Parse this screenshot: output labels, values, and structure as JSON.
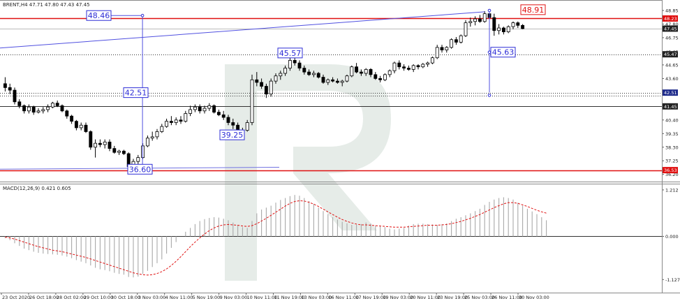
{
  "chart_data": {
    "type": "candlestick",
    "title": "BRENT,H4  47.71 47.80 47.43 47.45",
    "price_axis": {
      "range": [
        35.7,
        49.55
      ],
      "ticks": [
        "48.85",
        "47.80",
        "46.75",
        "45.65",
        "44.65",
        "43.60",
        "42.55",
        "41.45",
        "40.40",
        "39.35",
        "38.30",
        "37.25",
        "36.20"
      ],
      "tick_values": [
        48.85,
        47.8,
        46.75,
        45.65,
        44.65,
        43.6,
        42.55,
        41.45,
        40.4,
        39.35,
        38.3,
        37.25,
        36.2
      ]
    },
    "price_tags": [
      {
        "text": "48.23",
        "value": 48.23,
        "color": "#e01010"
      },
      {
        "text": "47.45",
        "value": 47.45,
        "color": "#222222"
      },
      {
        "text": "45.47",
        "value": 45.47,
        "color": "#222222"
      },
      {
        "text": "42.51",
        "value": 42.51,
        "color": "#1d2a8a"
      },
      {
        "text": "41.45",
        "value": 41.45,
        "color": "#222222"
      },
      {
        "text": "36.53",
        "value": 36.53,
        "color": "#e01010"
      }
    ],
    "horizontal_lines": [
      {
        "value": 48.23,
        "style": "solid",
        "color": "#e01010"
      },
      {
        "value": 47.45,
        "style": "solid",
        "color": "#bbbbbb"
      },
      {
        "value": 45.47,
        "style": "dotted",
        "color": "#333333"
      },
      {
        "value": 42.51,
        "style": "dotted",
        "color": "#333333"
      },
      {
        "value": 42.3,
        "style": "dotted",
        "color": "#333333"
      },
      {
        "value": 41.45,
        "style": "solid",
        "color": "#333333"
      },
      {
        "value": 36.53,
        "style": "solid",
        "color": "#e01010"
      }
    ],
    "annotations": [
      {
        "text": "48.46",
        "value": 48.46,
        "color": "#2d2dd6"
      },
      {
        "text": "42.51",
        "value": 42.51,
        "color": "#2d2dd6"
      },
      {
        "text": "36.60",
        "value": 36.6,
        "color": "#2d2dd6"
      },
      {
        "text": "39.25",
        "value": 39.25,
        "color": "#2d2dd6"
      },
      {
        "text": "45.57",
        "value": 45.57,
        "color": "#2d2dd6"
      },
      {
        "text": "45.63",
        "value": 45.63,
        "color": "#2d2dd6"
      },
      {
        "text": "48.91",
        "value": 48.91,
        "color": "#e01010"
      }
    ],
    "x_labels": [
      "23 Oct 2020",
      "26 Oct 18:00",
      "28 Oct 02:00",
      "29 Oct 10:00",
      "30 Oct 18:00",
      "3 Nov 03:00",
      "4 Nov 11:00",
      "5 Nov 19:00",
      "9 Nov 03:00",
      "10 Nov 11:00",
      "11 Nov 19:00",
      "13 Nov 03:00",
      "16 Nov 11:00",
      "17 Nov 19:00",
      "19 Nov 03:00",
      "20 Nov 11:00",
      "23 Nov 19:00",
      "25 Nov 03:00",
      "26 Nov 11:00",
      "30 Nov 03:00"
    ],
    "candles": [
      {
        "o": 43.2,
        "h": 43.7,
        "l": 42.6,
        "c": 42.9
      },
      {
        "o": 42.9,
        "h": 43.2,
        "l": 42.4,
        "c": 42.7
      },
      {
        "o": 42.7,
        "h": 42.9,
        "l": 41.6,
        "c": 41.8
      },
      {
        "o": 41.8,
        "h": 42.0,
        "l": 41.3,
        "c": 41.5
      },
      {
        "o": 41.5,
        "h": 41.6,
        "l": 40.9,
        "c": 41.1
      },
      {
        "o": 41.1,
        "h": 41.6,
        "l": 40.9,
        "c": 41.4
      },
      {
        "o": 41.4,
        "h": 41.5,
        "l": 40.8,
        "c": 41.0
      },
      {
        "o": 41.0,
        "h": 41.3,
        "l": 40.9,
        "c": 41.1
      },
      {
        "o": 41.1,
        "h": 41.4,
        "l": 40.9,
        "c": 41.2
      },
      {
        "o": 41.2,
        "h": 41.6,
        "l": 41.0,
        "c": 41.4
      },
      {
        "o": 41.4,
        "h": 41.8,
        "l": 41.3,
        "c": 41.7
      },
      {
        "o": 41.7,
        "h": 41.9,
        "l": 41.4,
        "c": 41.5
      },
      {
        "o": 41.5,
        "h": 41.6,
        "l": 41.0,
        "c": 41.1
      },
      {
        "o": 41.1,
        "h": 41.2,
        "l": 40.5,
        "c": 40.7
      },
      {
        "o": 40.7,
        "h": 40.8,
        "l": 40.1,
        "c": 40.3
      },
      {
        "o": 40.3,
        "h": 40.4,
        "l": 39.6,
        "c": 39.8
      },
      {
        "o": 39.8,
        "h": 40.2,
        "l": 39.6,
        "c": 40.0
      },
      {
        "o": 40.0,
        "h": 40.2,
        "l": 39.4,
        "c": 39.5
      },
      {
        "o": 39.5,
        "h": 39.6,
        "l": 38.1,
        "c": 38.3
      },
      {
        "o": 38.3,
        "h": 38.9,
        "l": 37.5,
        "c": 38.6
      },
      {
        "o": 38.6,
        "h": 38.9,
        "l": 38.3,
        "c": 38.5
      },
      {
        "o": 38.5,
        "h": 38.9,
        "l": 38.2,
        "c": 38.7
      },
      {
        "o": 38.7,
        "h": 38.9,
        "l": 38.0,
        "c": 38.2
      },
      {
        "o": 38.2,
        "h": 38.4,
        "l": 37.8,
        "c": 37.9
      },
      {
        "o": 37.9,
        "h": 38.1,
        "l": 37.7,
        "c": 38.0
      },
      {
        "o": 38.0,
        "h": 38.1,
        "l": 37.7,
        "c": 37.8
      },
      {
        "o": 37.8,
        "h": 37.9,
        "l": 36.6,
        "c": 36.8
      },
      {
        "o": 36.8,
        "h": 37.4,
        "l": 36.6,
        "c": 37.2
      },
      {
        "o": 37.2,
        "h": 37.7,
        "l": 37.0,
        "c": 37.5
      },
      {
        "o": 37.5,
        "h": 38.6,
        "l": 37.4,
        "c": 38.4
      },
      {
        "o": 38.4,
        "h": 39.2,
        "l": 38.3,
        "c": 39.0
      },
      {
        "o": 39.0,
        "h": 39.5,
        "l": 38.8,
        "c": 39.1
      },
      {
        "o": 39.1,
        "h": 39.7,
        "l": 38.9,
        "c": 39.5
      },
      {
        "o": 39.5,
        "h": 40.1,
        "l": 39.4,
        "c": 39.9
      },
      {
        "o": 39.9,
        "h": 40.5,
        "l": 39.8,
        "c": 40.3
      },
      {
        "o": 40.3,
        "h": 40.7,
        "l": 40.0,
        "c": 40.2
      },
      {
        "o": 40.2,
        "h": 40.6,
        "l": 40.0,
        "c": 40.4
      },
      {
        "o": 40.4,
        "h": 40.7,
        "l": 40.1,
        "c": 40.3
      },
      {
        "o": 40.3,
        "h": 41.1,
        "l": 40.2,
        "c": 40.9
      },
      {
        "o": 40.9,
        "h": 41.5,
        "l": 40.7,
        "c": 41.2
      },
      {
        "o": 41.2,
        "h": 41.6,
        "l": 41.0,
        "c": 41.4
      },
      {
        "o": 41.4,
        "h": 41.6,
        "l": 40.9,
        "c": 41.1
      },
      {
        "o": 41.1,
        "h": 41.5,
        "l": 40.9,
        "c": 41.3
      },
      {
        "o": 41.3,
        "h": 41.7,
        "l": 41.1,
        "c": 41.5
      },
      {
        "o": 41.5,
        "h": 41.6,
        "l": 40.9,
        "c": 41.0
      },
      {
        "o": 41.0,
        "h": 41.2,
        "l": 40.7,
        "c": 40.8
      },
      {
        "o": 40.8,
        "h": 41.1,
        "l": 40.4,
        "c": 40.6
      },
      {
        "o": 40.6,
        "h": 40.8,
        "l": 40.0,
        "c": 40.2
      },
      {
        "o": 40.2,
        "h": 40.5,
        "l": 39.7,
        "c": 40.0
      },
      {
        "o": 40.0,
        "h": 40.2,
        "l": 39.3,
        "c": 39.5
      },
      {
        "o": 39.5,
        "h": 39.8,
        "l": 39.3,
        "c": 39.6
      },
      {
        "o": 39.6,
        "h": 40.4,
        "l": 39.5,
        "c": 40.2
      },
      {
        "o": 40.2,
        "h": 43.9,
        "l": 40.0,
        "c": 43.5
      },
      {
        "o": 43.5,
        "h": 44.1,
        "l": 43.0,
        "c": 43.3
      },
      {
        "o": 43.3,
        "h": 43.6,
        "l": 42.8,
        "c": 43.0
      },
      {
        "o": 43.0,
        "h": 43.2,
        "l": 42.1,
        "c": 42.4
      },
      {
        "o": 42.4,
        "h": 43.6,
        "l": 42.2,
        "c": 43.4
      },
      {
        "o": 43.4,
        "h": 44.0,
        "l": 43.2,
        "c": 43.8
      },
      {
        "o": 43.8,
        "h": 44.2,
        "l": 43.5,
        "c": 44.0
      },
      {
        "o": 44.0,
        "h": 44.6,
        "l": 43.8,
        "c": 44.4
      },
      {
        "o": 44.4,
        "h": 45.2,
        "l": 44.2,
        "c": 45.0
      },
      {
        "o": 45.0,
        "h": 45.6,
        "l": 44.6,
        "c": 44.8
      },
      {
        "o": 44.8,
        "h": 45.0,
        "l": 44.2,
        "c": 44.4
      },
      {
        "o": 44.4,
        "h": 44.6,
        "l": 43.9,
        "c": 44.1
      },
      {
        "o": 44.1,
        "h": 44.3,
        "l": 43.8,
        "c": 43.9
      },
      {
        "o": 43.9,
        "h": 44.2,
        "l": 43.7,
        "c": 44.0
      },
      {
        "o": 44.0,
        "h": 44.1,
        "l": 43.6,
        "c": 43.7
      },
      {
        "o": 43.7,
        "h": 43.9,
        "l": 43.2,
        "c": 43.3
      },
      {
        "o": 43.3,
        "h": 43.6,
        "l": 43.1,
        "c": 43.5
      },
      {
        "o": 43.5,
        "h": 43.7,
        "l": 43.3,
        "c": 43.4
      },
      {
        "o": 43.4,
        "h": 43.6,
        "l": 43.2,
        "c": 43.3
      },
      {
        "o": 43.3,
        "h": 43.5,
        "l": 43.0,
        "c": 43.4
      },
      {
        "o": 43.4,
        "h": 43.9,
        "l": 43.3,
        "c": 43.8
      },
      {
        "o": 43.8,
        "h": 44.6,
        "l": 43.7,
        "c": 44.5
      },
      {
        "o": 44.5,
        "h": 44.8,
        "l": 44.0,
        "c": 44.1
      },
      {
        "o": 44.1,
        "h": 44.3,
        "l": 43.8,
        "c": 44.0
      },
      {
        "o": 44.0,
        "h": 44.4,
        "l": 43.8,
        "c": 44.3
      },
      {
        "o": 44.3,
        "h": 44.4,
        "l": 43.7,
        "c": 43.9
      },
      {
        "o": 43.9,
        "h": 44.1,
        "l": 43.5,
        "c": 43.6
      },
      {
        "o": 43.6,
        "h": 43.8,
        "l": 43.3,
        "c": 43.5
      },
      {
        "o": 43.5,
        "h": 44.0,
        "l": 43.4,
        "c": 43.9
      },
      {
        "o": 43.9,
        "h": 44.3,
        "l": 43.7,
        "c": 44.2
      },
      {
        "o": 44.2,
        "h": 44.9,
        "l": 44.0,
        "c": 44.8
      },
      {
        "o": 44.8,
        "h": 45.0,
        "l": 44.3,
        "c": 44.5
      },
      {
        "o": 44.5,
        "h": 44.7,
        "l": 44.2,
        "c": 44.4
      },
      {
        "o": 44.4,
        "h": 44.6,
        "l": 44.2,
        "c": 44.3
      },
      {
        "o": 44.3,
        "h": 44.7,
        "l": 44.1,
        "c": 44.6
      },
      {
        "o": 44.6,
        "h": 44.7,
        "l": 44.3,
        "c": 44.5
      },
      {
        "o": 44.5,
        "h": 44.8,
        "l": 44.4,
        "c": 44.7
      },
      {
        "o": 44.7,
        "h": 44.9,
        "l": 44.5,
        "c": 44.8
      },
      {
        "o": 44.8,
        "h": 45.3,
        "l": 44.7,
        "c": 45.2
      },
      {
        "o": 45.2,
        "h": 46.2,
        "l": 45.1,
        "c": 46.0
      },
      {
        "o": 46.0,
        "h": 46.2,
        "l": 45.6,
        "c": 45.8
      },
      {
        "o": 45.8,
        "h": 46.1,
        "l": 45.6,
        "c": 46.0
      },
      {
        "o": 46.0,
        "h": 46.7,
        "l": 45.9,
        "c": 46.6
      },
      {
        "o": 46.6,
        "h": 46.8,
        "l": 46.2,
        "c": 46.4
      },
      {
        "o": 46.4,
        "h": 47.0,
        "l": 46.3,
        "c": 46.9
      },
      {
        "o": 46.9,
        "h": 48.1,
        "l": 46.8,
        "c": 47.9
      },
      {
        "o": 47.9,
        "h": 48.3,
        "l": 47.6,
        "c": 48.0
      },
      {
        "o": 48.0,
        "h": 48.4,
        "l": 47.7,
        "c": 48.2
      },
      {
        "o": 48.2,
        "h": 48.5,
        "l": 47.9,
        "c": 48.0
      },
      {
        "o": 48.0,
        "h": 48.8,
        "l": 47.9,
        "c": 48.6
      },
      {
        "o": 48.6,
        "h": 48.9,
        "l": 47.8,
        "c": 48.3
      },
      {
        "o": 48.3,
        "h": 48.6,
        "l": 46.9,
        "c": 47.3
      },
      {
        "o": 47.3,
        "h": 47.8,
        "l": 47.0,
        "c": 47.5
      },
      {
        "o": 47.5,
        "h": 47.6,
        "l": 47.0,
        "c": 47.2
      },
      {
        "o": 47.2,
        "h": 47.7,
        "l": 47.1,
        "c": 47.6
      },
      {
        "o": 47.6,
        "h": 48.0,
        "l": 47.4,
        "c": 47.9
      },
      {
        "o": 47.9,
        "h": 48.0,
        "l": 47.5,
        "c": 47.7
      },
      {
        "o": 47.7,
        "h": 47.8,
        "l": 47.4,
        "c": 47.45
      }
    ],
    "macd": {
      "label": "MACD(12,26,9) 0.421 0.605",
      "range": [
        -1.45,
        1.32
      ],
      "ticks": [
        "1.212",
        "0.000",
        "-1.127"
      ],
      "tick_values": [
        1.212,
        0.0,
        -1.127
      ],
      "histogram": [
        -0.05,
        -0.1,
        -0.18,
        -0.25,
        -0.32,
        -0.36,
        -0.4,
        -0.43,
        -0.45,
        -0.46,
        -0.47,
        -0.48,
        -0.5,
        -0.53,
        -0.57,
        -0.62,
        -0.66,
        -0.7,
        -0.76,
        -0.82,
        -0.86,
        -0.88,
        -0.91,
        -0.95,
        -0.98,
        -1.0,
        -1.06,
        -1.07,
        -1.05,
        -0.98,
        -0.9,
        -0.8,
        -0.7,
        -0.6,
        -0.45,
        -0.3,
        -0.15,
        0.0,
        0.12,
        0.22,
        0.32,
        0.4,
        0.45,
        0.48,
        0.5,
        0.49,
        0.46,
        0.42,
        0.36,
        0.3,
        0.24,
        0.22,
        0.4,
        0.6,
        0.7,
        0.75,
        0.8,
        0.88,
        0.95,
        1.0,
        1.05,
        1.08,
        1.06,
        1.0,
        0.92,
        0.85,
        0.75,
        0.66,
        0.58,
        0.5,
        0.44,
        0.38,
        0.34,
        0.3,
        0.3,
        0.32,
        0.36,
        0.33,
        0.28,
        0.26,
        0.24,
        0.2,
        0.18,
        0.2,
        0.22,
        0.28,
        0.32,
        0.33,
        0.33,
        0.32,
        0.31,
        0.3,
        0.32,
        0.34,
        0.4,
        0.46,
        0.5,
        0.55,
        0.6,
        0.66,
        0.72,
        0.82,
        0.9,
        0.96,
        1.0,
        1.02,
        1.0,
        0.96,
        0.88,
        0.8,
        0.72,
        0.65,
        0.58,
        0.5,
        0.42
      ],
      "signal": [
        -0.02,
        -0.04,
        -0.07,
        -0.11,
        -0.15,
        -0.19,
        -0.23,
        -0.27,
        -0.3,
        -0.33,
        -0.36,
        -0.38,
        -0.4,
        -0.43,
        -0.46,
        -0.49,
        -0.52,
        -0.55,
        -0.59,
        -0.63,
        -0.67,
        -0.71,
        -0.75,
        -0.79,
        -0.83,
        -0.87,
        -0.91,
        -0.95,
        -0.98,
        -1.0,
        -1.01,
        -1.0,
        -0.97,
        -0.92,
        -0.85,
        -0.76,
        -0.65,
        -0.53,
        -0.4,
        -0.27,
        -0.15,
        -0.04,
        0.06,
        0.15,
        0.22,
        0.27,
        0.3,
        0.31,
        0.3,
        0.29,
        0.27,
        0.26,
        0.28,
        0.33,
        0.4,
        0.47,
        0.55,
        0.63,
        0.71,
        0.79,
        0.86,
        0.91,
        0.93,
        0.92,
        0.89,
        0.84,
        0.78,
        0.71,
        0.64,
        0.57,
        0.5,
        0.44,
        0.39,
        0.35,
        0.32,
        0.3,
        0.3,
        0.29,
        0.28,
        0.27,
        0.26,
        0.25,
        0.24,
        0.24,
        0.24,
        0.25,
        0.26,
        0.27,
        0.28,
        0.29,
        0.29,
        0.29,
        0.3,
        0.31,
        0.33,
        0.36,
        0.39,
        0.43,
        0.47,
        0.52,
        0.57,
        0.63,
        0.69,
        0.75,
        0.8,
        0.85,
        0.88,
        0.88,
        0.86,
        0.82,
        0.78,
        0.73,
        0.68,
        0.64,
        0.605
      ]
    },
    "watermark": "R"
  }
}
